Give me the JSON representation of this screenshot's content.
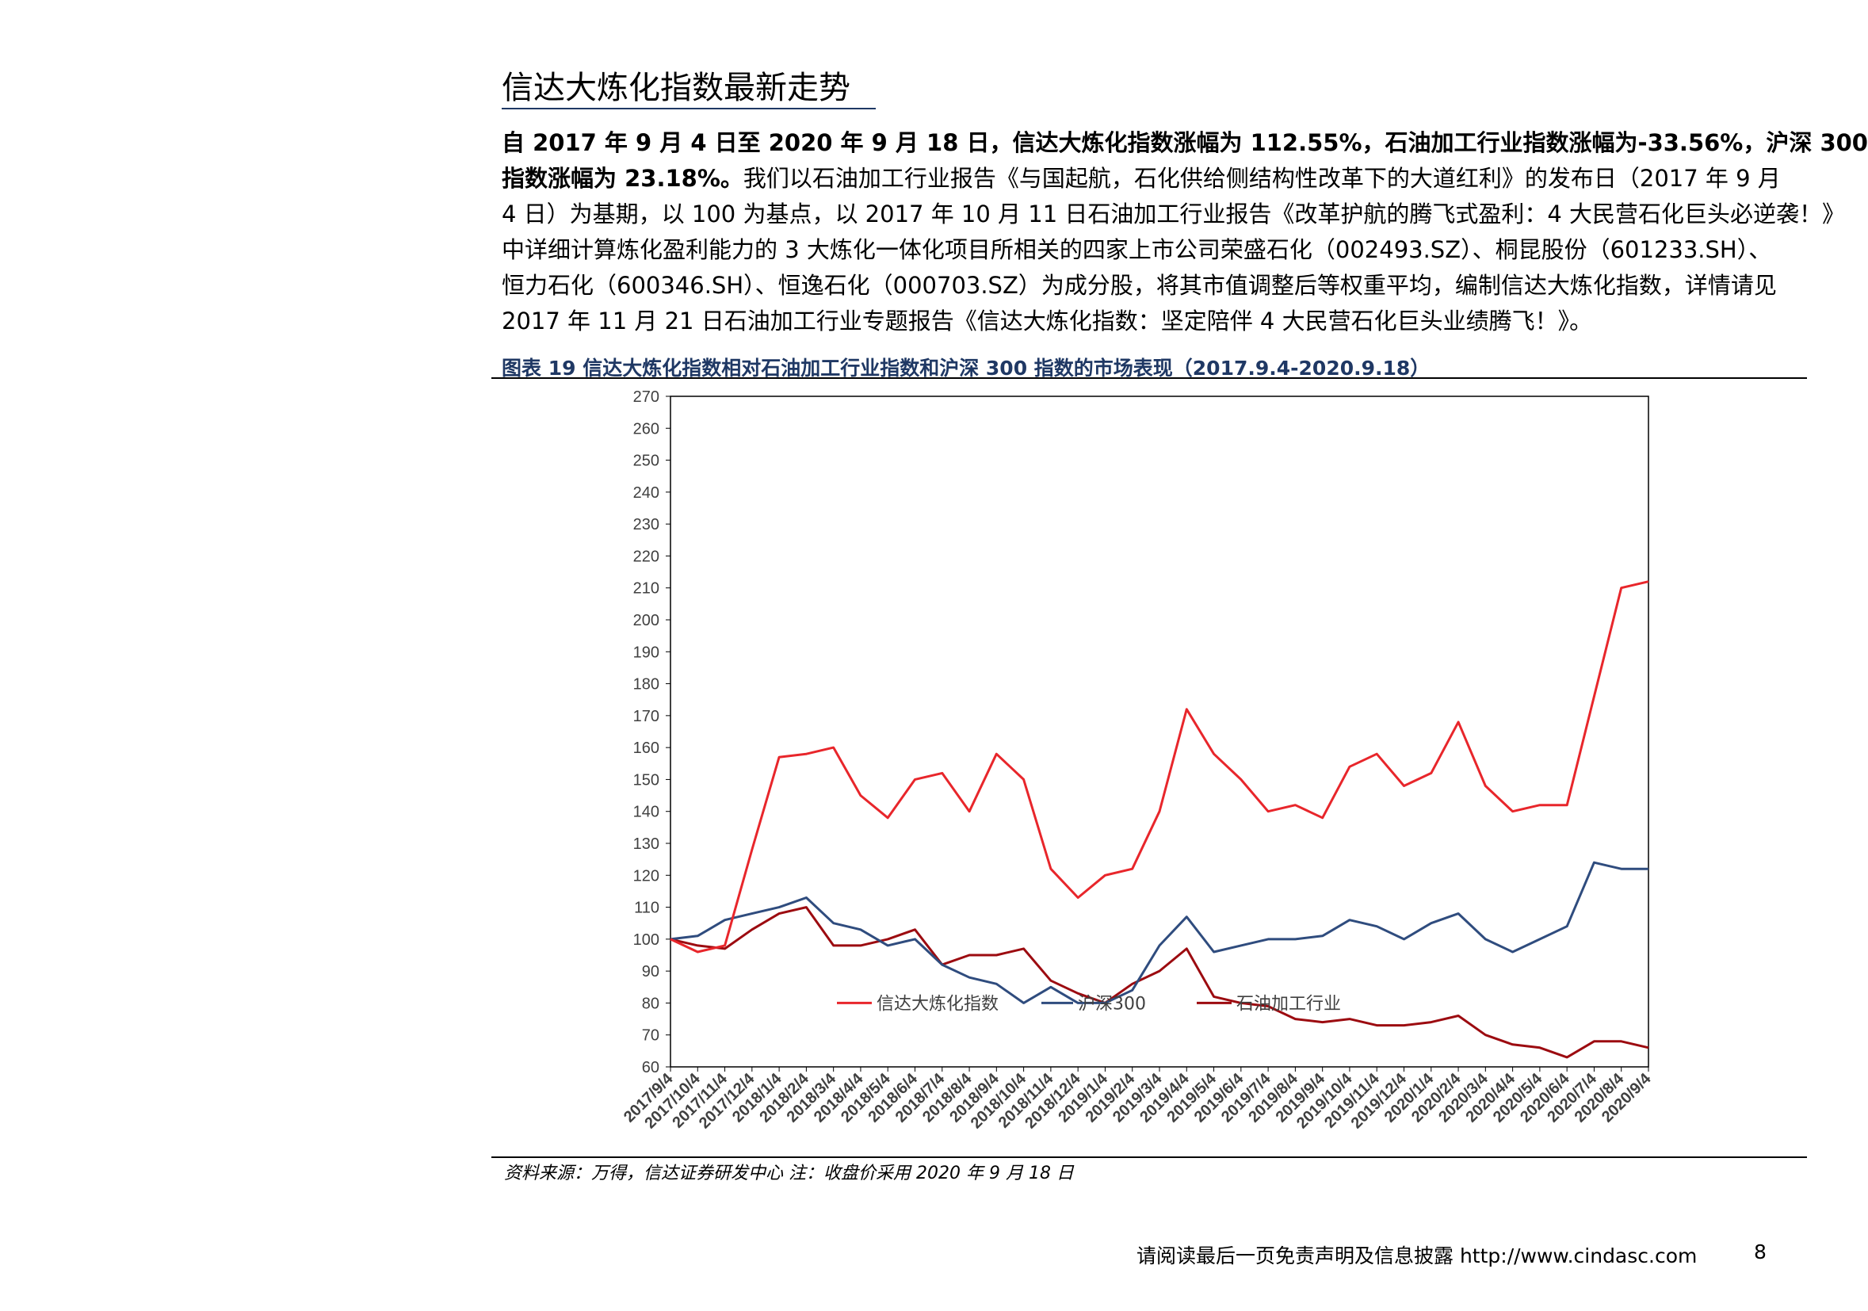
{
  "section": {
    "title": "信达大炼化指数最新走势"
  },
  "paragraph": {
    "line1": {
      "b1": "自 2017 年 9 月 4 日至 2020 年 9 月 18 日，信达大炼化指数涨幅为 112.55%，石油加工行业指数涨幅为-33.56%，沪深 300"
    },
    "line2": {
      "b2": "指数涨幅为 23.18%。",
      "t2": "我们以石油加工行业报告《与国起航，石化供给侧结构性改革下的大道红利》的发布日（2017 年 9 月"
    },
    "line3": "4 日）为基期，以 100 为基点，以 2017 年 10 月 11 日石油加工行业报告《改革护航的腾飞式盈利：4 大民营石化巨头必逆袭！》",
    "line4": "中详细计算炼化盈利能力的 3 大炼化一体化项目所相关的四家上市公司荣盛石化（002493.SZ）、桐昆股份（601233.SH）、",
    "line5": "恒力石化（600346.SH）、恒逸石化（000703.SZ）为成分股，将其市值调整后等权重平均，编制信达大炼化指数，详情请见",
    "line6": "2017 年 11 月 21 日石油加工行业专题报告《信达大炼化指数：坚定陪伴 4 大民营石化巨头业绩腾飞！》。"
  },
  "figure": {
    "caption": "图表 19 信达大炼化指数相对石油加工行业指数和沪深 300 指数的市场表现（2017.9.4-2020.9.18）"
  },
  "chart_data": {
    "type": "line",
    "ylim": [
      60,
      270
    ],
    "y_ticks": [
      "270",
      "260",
      "250",
      "240",
      "230",
      "220",
      "210",
      "200",
      "190",
      "180",
      "170",
      "160",
      "150",
      "140",
      "130",
      "120",
      "110",
      "100",
      "90",
      "80",
      "70",
      "60"
    ],
    "categories": [
      "2017/9/4",
      "2017/10/4",
      "2017/11/4",
      "2017/12/4",
      "2018/1/4",
      "2018/2/4",
      "2018/3/4",
      "2018/4/4",
      "2018/5/4",
      "2018/6/4",
      "2018/7/4",
      "2018/8/4",
      "2018/9/4",
      "2018/10/4",
      "2018/11/4",
      "2018/12/4",
      "2019/1/4",
      "2019/2/4",
      "2019/3/4",
      "2019/4/4",
      "2019/5/4",
      "2019/6/4",
      "2019/7/4",
      "2019/8/4",
      "2019/9/4",
      "2019/10/4",
      "2019/11/4",
      "2019/12/4",
      "2020/1/4",
      "2020/2/4",
      "2020/3/4",
      "2020/4/4",
      "2020/5/4",
      "2020/6/4",
      "2020/7/4",
      "2020/8/4",
      "2020/9/4"
    ],
    "legend_position": "bottom-inside",
    "series": [
      {
        "name": "信达大炼化指数",
        "color": "#e8262b",
        "values": [
          100,
          96,
          98,
          128,
          157,
          158,
          160,
          145,
          138,
          150,
          152,
          140,
          158,
          150,
          122,
          113,
          120,
          122,
          140,
          172,
          158,
          150,
          140,
          142,
          138,
          154,
          158,
          148,
          152,
          168,
          148,
          140,
          142,
          142,
          176,
          210,
          212
        ]
      },
      {
        "name": "沪深300",
        "color": "#2f4c7e",
        "values": [
          100,
          101,
          106,
          108,
          110,
          113,
          105,
          103,
          98,
          100,
          92,
          88,
          86,
          80,
          85,
          80,
          80,
          84,
          98,
          107,
          96,
          98,
          100,
          100,
          101,
          106,
          104,
          100,
          105,
          108,
          100,
          96,
          100,
          104,
          124,
          122,
          122
        ]
      },
      {
        "name": "石油加工行业",
        "color": "#9c0b10",
        "values": [
          100,
          98,
          97,
          103,
          108,
          110,
          98,
          98,
          100,
          103,
          92,
          95,
          95,
          97,
          87,
          83,
          80,
          86,
          90,
          97,
          82,
          80,
          79,
          75,
          74,
          75,
          73,
          73,
          74,
          76,
          70,
          67,
          66,
          63,
          68,
          68,
          66
        ]
      }
    ]
  },
  "source": {
    "note": "资料来源：万得，信达证券研发中心   注：收盘价采用 2020 年 9 月 18 日"
  },
  "footer": {
    "disclaimer": "请阅读最后一页免责声明及信息披露 http://www.cindasc.com",
    "page": "8"
  }
}
